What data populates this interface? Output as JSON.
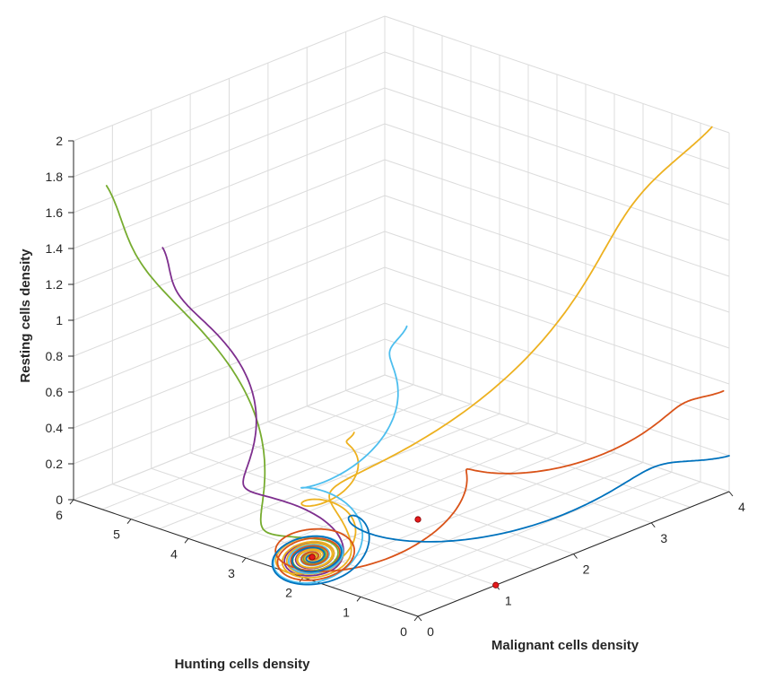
{
  "chart_data": {
    "type": "line3d",
    "title": "",
    "xlabel": "Malignant cells density",
    "ylabel": "Hunting cells density",
    "zlabel": "Resting cells density",
    "xlim": [
      0,
      4
    ],
    "ylim": [
      0,
      6
    ],
    "zlim": [
      0,
      2
    ],
    "x_ticks": [
      "0",
      "1",
      "2",
      "3",
      "4"
    ],
    "y_ticks": [
      "0",
      "1",
      "2",
      "3",
      "4",
      "5",
      "6"
    ],
    "z_ticks": [
      "0",
      "0.2",
      "0.4",
      "0.6",
      "0.8",
      "1",
      "1.2",
      "1.4",
      "1.6",
      "1.8",
      "2"
    ],
    "grid": true,
    "equilibrium_points": [
      {
        "x": 1.0,
        "y": 0.0,
        "z": 0.0,
        "color": "#e41a1c"
      },
      {
        "x": 0.0,
        "y": 0.0,
        "z": 0.54,
        "color": "#e41a1c"
      },
      {
        "x": 0.19,
        "y": 2.1,
        "z": 0.07,
        "color": "#e41a1c"
      }
    ],
    "series": [
      {
        "color": "#77ac30",
        "start": {
          "x": 0.35,
          "y": 5.9,
          "z": 1.7
        }
      },
      {
        "color": "#7e2f8e",
        "start": {
          "x": 0.85,
          "y": 5.6,
          "z": 1.3
        }
      },
      {
        "color": "#edb120",
        "start": {
          "x": 0.95,
          "y": 2.4,
          "z": 0.6
        }
      },
      {
        "color": "#edb120",
        "start": {
          "x": 4.0,
          "y": 0.3,
          "z": 2.0
        }
      },
      {
        "color": "#4dbeee",
        "start": {
          "x": 0.3,
          "y": 0.6,
          "z": 1.5
        }
      },
      {
        "color": "#d95319",
        "start": {
          "x": 4.0,
          "y": 0.1,
          "z": 0.55
        }
      },
      {
        "color": "#0072bd",
        "start": {
          "x": 4.0,
          "y": 0.0,
          "z": 0.2
        }
      }
    ]
  }
}
